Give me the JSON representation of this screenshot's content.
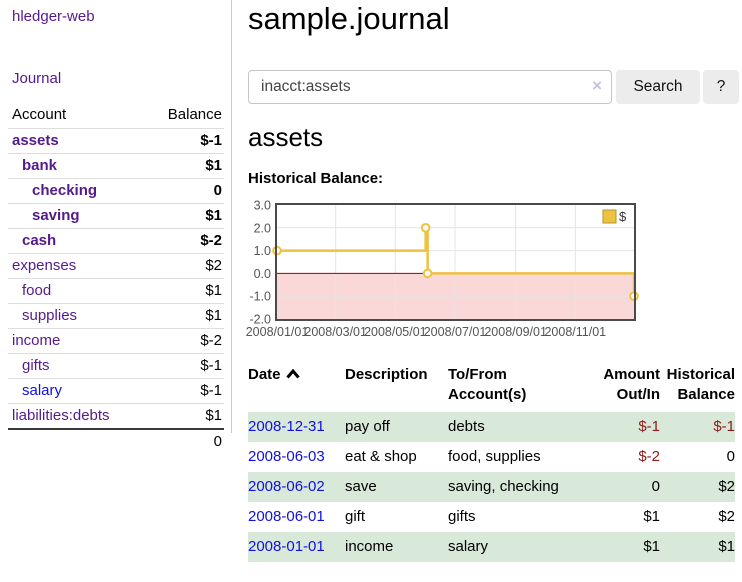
{
  "sidebar": {
    "app_title": "hledger-web",
    "nav_journal": "Journal",
    "table": {
      "col_account": "Account",
      "col_balance": "Balance",
      "rows": [
        {
          "account": "assets",
          "depth": 1,
          "bold": true,
          "balance": "$-1",
          "neg": "strong",
          "link": "visited"
        },
        {
          "account": "bank",
          "depth": 2,
          "bold": true,
          "balance": "$1",
          "neg": "none",
          "link": "visited"
        },
        {
          "account": "checking",
          "depth": 3,
          "bold": true,
          "balance": "0",
          "neg": "none",
          "link": "visited"
        },
        {
          "account": "saving",
          "depth": 3,
          "bold": true,
          "balance": "$1",
          "neg": "none",
          "link": "visited"
        },
        {
          "account": "cash",
          "depth": 2,
          "bold": true,
          "balance": "$-2",
          "neg": "strong",
          "link": "visited"
        },
        {
          "account": "expenses",
          "depth": 1,
          "bold": false,
          "balance": "$2",
          "neg": "none",
          "link": "visited"
        },
        {
          "account": "food",
          "depth": 2,
          "bold": false,
          "balance": "$1",
          "neg": "none",
          "link": "visited"
        },
        {
          "account": "supplies",
          "depth": 2,
          "bold": false,
          "balance": "$1",
          "neg": "none",
          "link": "visited"
        },
        {
          "account": "income",
          "depth": 1,
          "bold": false,
          "balance": "$-2",
          "neg": "muted",
          "link": "visited"
        },
        {
          "account": "gifts",
          "depth": 2,
          "bold": false,
          "balance": "$-1",
          "neg": "muted",
          "link": "visited"
        },
        {
          "account": "salary",
          "depth": 2,
          "bold": false,
          "balance": "$-1",
          "neg": "muted",
          "link": "new"
        },
        {
          "account": "liabilities:debts",
          "depth": 1,
          "bold": false,
          "balance": "$1",
          "neg": "none",
          "link": "visited"
        }
      ],
      "total": "0"
    }
  },
  "header": {
    "title": "sample.journal"
  },
  "search": {
    "query": "inacct:assets",
    "clear_icon": "×",
    "button": "Search",
    "help_button": "?"
  },
  "account_page": {
    "heading": "assets"
  },
  "chart_data": {
    "type": "line",
    "title": "Historical Balance:",
    "legend": "$",
    "ylim": [
      -2,
      3
    ],
    "y_ticks": [
      "3.0",
      "2.0",
      "1.0",
      "0.0",
      "-1.0",
      "-2.0"
    ],
    "x_range": [
      "2008-01-01",
      "2008-12-31"
    ],
    "x_ticks": [
      "2008/01/01",
      "2008/03/01",
      "2008/05/01",
      "2008/07/01",
      "2008/09/01",
      "2008/11/01"
    ],
    "series": [
      {
        "name": "$",
        "step": true,
        "points": [
          [
            "2008-01-01",
            1
          ],
          [
            "2008-06-01",
            2
          ],
          [
            "2008-06-03",
            0
          ],
          [
            "2008-12-31",
            -1
          ]
        ]
      }
    ],
    "grid": true,
    "legend_position": "top-right",
    "colors": {
      "line": "#edc240",
      "marker_fill": "#ffffff",
      "negative_region": "#fbd8d8",
      "zero_line": "#a00000",
      "grid": "#e4e4e4",
      "border": "#4a4a4a",
      "tick_label": "#545454"
    }
  },
  "register": {
    "columns": {
      "date": "Date",
      "description": "Description",
      "accounts": [
        "To/From",
        "Account(s)"
      ],
      "amount": [
        "Amount",
        "Out/In"
      ],
      "balance": [
        "Historical",
        "Balance"
      ]
    },
    "sort_indicator": "ascending",
    "rows": [
      {
        "date": "2008-12-31",
        "description": "pay off",
        "accounts": "debts",
        "amount": "$-1",
        "amount_neg": true,
        "balance": "$-1",
        "balance_neg": true,
        "shaded": true
      },
      {
        "date": "2008-06-03",
        "description": "eat & shop",
        "accounts": "food, supplies",
        "amount": "$-2",
        "amount_neg": true,
        "balance": "0",
        "balance_neg": false,
        "shaded": false
      },
      {
        "date": "2008-06-02",
        "description": "save",
        "accounts": "saving, checking",
        "amount": "0",
        "amount_neg": false,
        "balance": "$2",
        "balance_neg": false,
        "shaded": true
      },
      {
        "date": "2008-06-01",
        "description": "gift",
        "accounts": "gifts",
        "amount": "$1",
        "amount_neg": false,
        "balance": "$2",
        "balance_neg": false,
        "shaded": false
      },
      {
        "date": "2008-01-01",
        "description": "income",
        "accounts": "salary",
        "amount": "$1",
        "amount_neg": false,
        "balance": "$1",
        "balance_neg": false,
        "shaded": true
      }
    ]
  },
  "colors": {
    "link_visited_purple": "#551a8b",
    "link_blue": "#1010e0",
    "negative_red": "#8f1a1a",
    "negative_muted_red": "#c08585",
    "shaded_row_green": "#d9e9d9",
    "button_gray": "#ececec"
  }
}
